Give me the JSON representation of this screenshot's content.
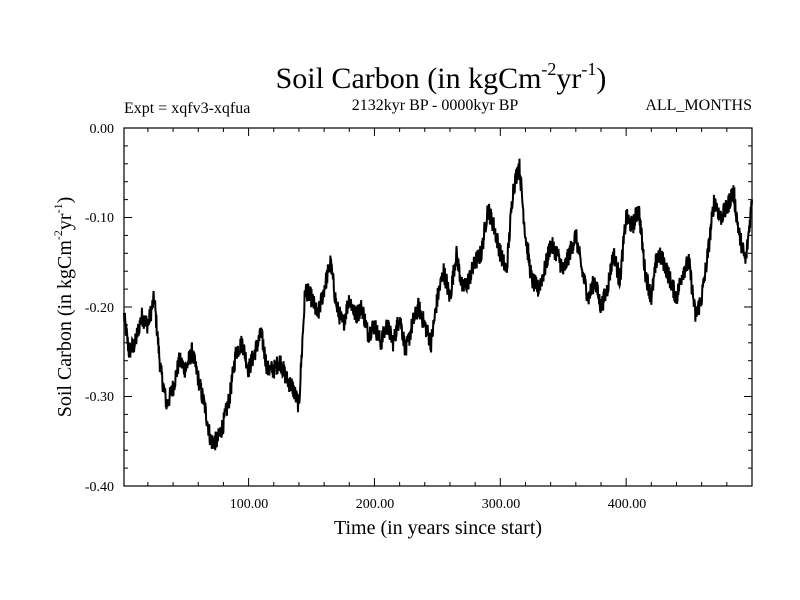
{
  "chart_data": {
    "type": "line",
    "title_main": "Soil Carbon (in kgCm",
    "title_sup1": "-2",
    "title_mid": "yr",
    "title_sup2": "-1",
    "title_end": ")",
    "subtitle_left": "Expt = xqfv3-xqfua",
    "subtitle_center": "2132kyr BP - 0000kyr BP",
    "subtitle_right": "ALL_MONTHS",
    "xlabel": "Time (in years since start)",
    "ylabel_main": "Soil Carbon (in kgCm",
    "ylabel_sup1": "-2",
    "ylabel_mid": "yr",
    "ylabel_sup2": "-1",
    "ylabel_end": ")",
    "xlim": [
      1,
      500
    ],
    "ylim": [
      -0.4,
      0.0
    ],
    "xticks": [
      100,
      200,
      300,
      400
    ],
    "xtick_labels": [
      "100.00",
      "200.00",
      "300.00",
      "400.00"
    ],
    "yticks": [
      0.0,
      -0.1,
      -0.2,
      -0.3,
      -0.4
    ],
    "ytick_labels": [
      "0.00",
      "-0.10",
      "-0.20",
      "-0.30",
      "-0.40"
    ],
    "series": [
      {
        "name": "Soil Carbon",
        "color": "#000000",
        "x": [
          1,
          5,
          10,
          15,
          20,
          25,
          30,
          35,
          40,
          45,
          50,
          55,
          60,
          65,
          70,
          75,
          80,
          85,
          90,
          95,
          100,
          105,
          110,
          115,
          120,
          125,
          130,
          135,
          140,
          145,
          150,
          155,
          160,
          165,
          170,
          175,
          180,
          185,
          190,
          195,
          200,
          205,
          210,
          215,
          220,
          225,
          230,
          235,
          240,
          245,
          250,
          255,
          260,
          265,
          270,
          275,
          280,
          285,
          290,
          295,
          300,
          305,
          310,
          315,
          320,
          325,
          330,
          335,
          340,
          345,
          350,
          355,
          360,
          365,
          370,
          375,
          380,
          385,
          390,
          395,
          400,
          405,
          410,
          415,
          420,
          425,
          430,
          435,
          440,
          445,
          450,
          455,
          460,
          465,
          470,
          475,
          480,
          485,
          490,
          495,
          500
        ],
        "y": [
          -0.21,
          -0.25,
          -0.24,
          -0.21,
          -0.22,
          -0.19,
          -0.27,
          -0.31,
          -0.29,
          -0.26,
          -0.27,
          -0.25,
          -0.28,
          -0.31,
          -0.35,
          -0.35,
          -0.33,
          -0.3,
          -0.25,
          -0.24,
          -0.27,
          -0.25,
          -0.23,
          -0.27,
          -0.27,
          -0.26,
          -0.28,
          -0.29,
          -0.31,
          -0.18,
          -0.19,
          -0.21,
          -0.18,
          -0.15,
          -0.2,
          -0.22,
          -0.19,
          -0.21,
          -0.2,
          -0.23,
          -0.22,
          -0.24,
          -0.22,
          -0.24,
          -0.21,
          -0.25,
          -0.22,
          -0.2,
          -0.22,
          -0.24,
          -0.19,
          -0.16,
          -0.19,
          -0.14,
          -0.18,
          -0.17,
          -0.15,
          -0.14,
          -0.09,
          -0.11,
          -0.14,
          -0.16,
          -0.07,
          -0.04,
          -0.12,
          -0.17,
          -0.18,
          -0.16,
          -0.13,
          -0.14,
          -0.16,
          -0.14,
          -0.12,
          -0.16,
          -0.19,
          -0.17,
          -0.2,
          -0.18,
          -0.14,
          -0.17,
          -0.1,
          -0.11,
          -0.09,
          -0.16,
          -0.19,
          -0.14,
          -0.15,
          -0.17,
          -0.19,
          -0.16,
          -0.15,
          -0.21,
          -0.19,
          -0.14,
          -0.08,
          -0.1,
          -0.09,
          -0.07,
          -0.12,
          -0.15,
          -0.08
        ]
      }
    ]
  }
}
